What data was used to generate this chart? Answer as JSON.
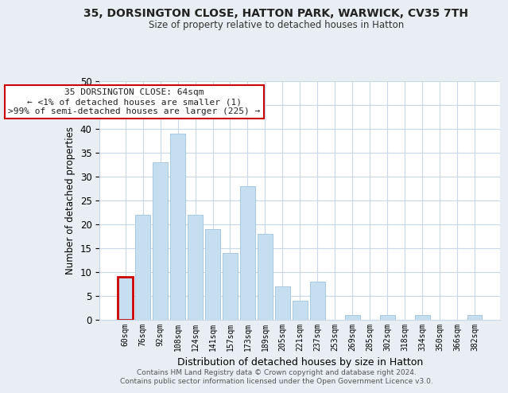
{
  "title": "35, DORSINGTON CLOSE, HATTON PARK, WARWICK, CV35 7TH",
  "subtitle": "Size of property relative to detached houses in Hatton",
  "xlabel": "Distribution of detached houses by size in Hatton",
  "ylabel": "Number of detached properties",
  "bar_color": "#c5dff0",
  "bar_edge_color": "#a8c8e0",
  "highlight_edge_color": "#cc0000",
  "categories": [
    "60sqm",
    "76sqm",
    "92sqm",
    "108sqm",
    "124sqm",
    "141sqm",
    "157sqm",
    "173sqm",
    "189sqm",
    "205sqm",
    "221sqm",
    "237sqm",
    "253sqm",
    "269sqm",
    "285sqm",
    "302sqm",
    "318sqm",
    "334sqm",
    "350sqm",
    "366sqm",
    "382sqm"
  ],
  "values": [
    9,
    22,
    33,
    39,
    22,
    19,
    14,
    28,
    18,
    7,
    4,
    8,
    0,
    1,
    0,
    1,
    0,
    1,
    0,
    0,
    1
  ],
  "highlight_index": 0,
  "ylim": [
    0,
    50
  ],
  "yticks": [
    0,
    5,
    10,
    15,
    20,
    25,
    30,
    35,
    40,
    45,
    50
  ],
  "annotation_title": "35 DORSINGTON CLOSE: 64sqm",
  "annotation_line1": "← <1% of detached houses are smaller (1)",
  "annotation_line2": ">99% of semi-detached houses are larger (225) →",
  "footer1": "Contains HM Land Registry data © Crown copyright and database right 2024.",
  "footer2": "Contains public sector information licensed under the Open Government Licence v3.0.",
  "background_color": "#e8eef4",
  "plot_bg_color": "#ffffff",
  "grid_color": "#c8d8e8"
}
